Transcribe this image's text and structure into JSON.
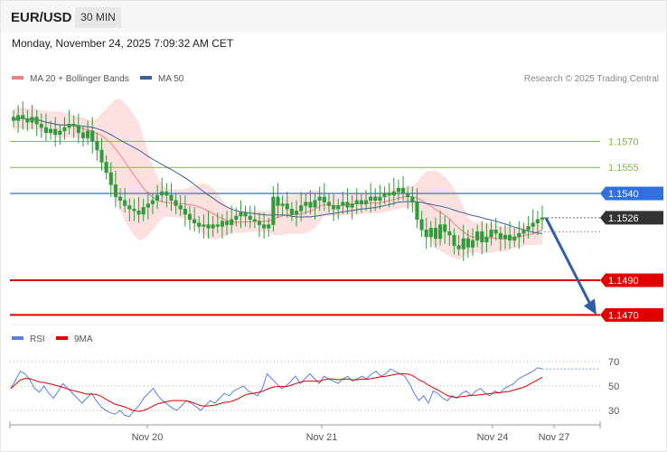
{
  "header": {
    "symbol": "EUR/USD",
    "timeframe": "30 MIN",
    "datetime": "Monday, November 24, 2025 7:09:32 AM CET"
  },
  "colors": {
    "candle": "#2e9c3a",
    "ma20": "#f08080",
    "bollinger_fill": "#fde1e1",
    "ma50": "#3a5fa0",
    "green_level": "#7cba3a",
    "blue_level": "#2f6fe0",
    "red_level": "#e00000",
    "current_price": "#333333",
    "rsi": "#5b7fe0",
    "rsi_ma": "#e00000",
    "forecast_arrow": "#2f5ea8"
  },
  "chart_data": [
    {
      "type": "candlestick",
      "legend": [
        {
          "name": "MA 20 + Bollinger Bands",
          "color": "#f08080"
        },
        {
          "name": "MA 50",
          "color": "#3a5fa0"
        }
      ],
      "credit": "Research © 2025 Trading Central",
      "price_levels": [
        {
          "value": 1.157,
          "label": "1.1570",
          "style": "green-line"
        },
        {
          "value": 1.1555,
          "label": "1.1555",
          "style": "green-line"
        },
        {
          "value": 1.154,
          "label": "1.1540",
          "style": "blue-tag"
        },
        {
          "value": 1.1526,
          "label": "1.1526",
          "style": "current-price-tag"
        },
        {
          "value": 1.149,
          "label": "1.1490",
          "style": "red-tag"
        },
        {
          "value": 1.147,
          "label": "1.1470",
          "style": "red-tag"
        }
      ],
      "x_ticks": [
        "Nov 20",
        "Nov 21",
        "Nov 24",
        "Nov 27"
      ],
      "y_range": [
        1.1465,
        1.159
      ],
      "forecast": {
        "from": 1.1526,
        "to": 1.147,
        "direction": "down"
      },
      "close_series": [
        1.1582,
        1.1585,
        1.1583,
        1.1581,
        1.1584,
        1.158,
        1.1578,
        1.1575,
        1.1577,
        1.1574,
        1.1576,
        1.1578,
        1.158,
        1.1579,
        1.1575,
        1.1572,
        1.1576,
        1.157,
        1.1565,
        1.1558,
        1.1552,
        1.1545,
        1.1538,
        1.1536,
        1.1533,
        1.1531,
        1.153,
        1.1528,
        1.1532,
        1.1534,
        1.1536,
        1.1539,
        1.1541,
        1.1539,
        1.1536,
        1.1533,
        1.1531,
        1.1528,
        1.1525,
        1.1523,
        1.1521,
        1.1522,
        1.152,
        1.1522,
        1.1521,
        1.1524,
        1.1522,
        1.1525,
        1.1527,
        1.1529,
        1.1527,
        1.1525,
        1.1524,
        1.1522,
        1.152,
        1.1522,
        1.1538,
        1.1533,
        1.1534,
        1.1531,
        1.1528,
        1.153,
        1.1533,
        1.1535,
        1.1532,
        1.1536,
        1.1538,
        1.1535,
        1.1533,
        1.1531,
        1.1533,
        1.1535,
        1.1532,
        1.1534,
        1.1536,
        1.1534,
        1.1536,
        1.1538,
        1.1536,
        1.1538,
        1.154,
        1.1539,
        1.1541,
        1.1543,
        1.154,
        1.1538,
        1.1535,
        1.1525,
        1.1519,
        1.1515,
        1.152,
        1.1514,
        1.1522,
        1.1518,
        1.1516,
        1.151,
        1.1508,
        1.1514,
        1.1509,
        1.1513,
        1.1518,
        1.1512,
        1.1515,
        1.1519,
        1.1517,
        1.1514,
        1.1516,
        1.1513,
        1.1515,
        1.1517,
        1.1519,
        1.1521,
        1.1523,
        1.1525,
        1.1526
      ]
    },
    {
      "type": "line",
      "legend": [
        {
          "name": "RSI",
          "color": "#5b7fe0"
        },
        {
          "name": "9MA",
          "color": "#e00000"
        }
      ],
      "y_ticks": [
        70,
        50,
        30
      ],
      "y_range": [
        20,
        80
      ],
      "rsi_series": [
        48,
        55,
        62,
        60,
        55,
        48,
        45,
        50,
        44,
        40,
        46,
        52,
        48,
        44,
        40,
        36,
        40,
        44,
        38,
        33,
        30,
        28,
        27,
        30,
        26,
        25,
        30,
        34,
        40,
        44,
        48,
        42,
        38,
        35,
        32,
        30,
        34,
        38,
        36,
        33,
        30,
        34,
        38,
        36,
        40,
        44,
        42,
        46,
        48,
        50,
        46,
        44,
        42,
        48,
        60,
        56,
        52,
        48,
        50,
        54,
        58,
        52,
        56,
        60,
        56,
        52,
        58,
        56,
        54,
        52,
        56,
        58,
        54,
        56,
        58,
        56,
        60,
        62,
        58,
        60,
        64,
        62,
        60,
        58,
        52,
        44,
        38,
        42,
        36,
        46,
        44,
        40,
        38,
        42,
        40,
        44,
        46,
        42,
        46,
        48,
        44,
        42,
        46,
        44,
        48,
        50,
        52,
        56,
        58,
        60,
        62,
        65,
        64
      ]
    }
  ]
}
